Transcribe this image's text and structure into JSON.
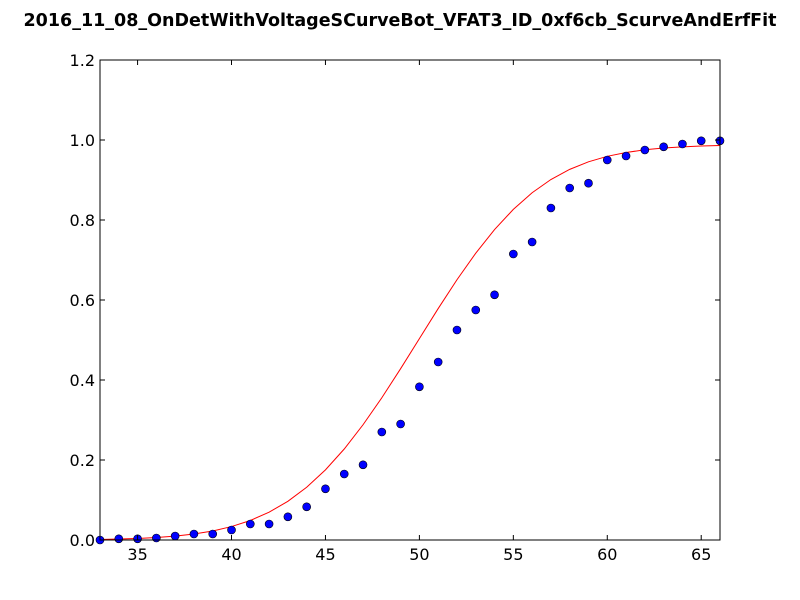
{
  "chart_data": {
    "type": "scatter",
    "title": "2016_11_08_OnDetWithVoltageSCurveBot_VFAT3_ID_0xf6cb_ScurveAndErfFit",
    "xlabel": "",
    "ylabel": "",
    "xlim": [
      33,
      66
    ],
    "ylim": [
      0.0,
      1.2
    ],
    "x_ticks": [
      35,
      40,
      45,
      50,
      55,
      60,
      65
    ],
    "y_ticks": [
      0.0,
      0.2,
      0.4,
      0.6,
      0.8,
      1.0,
      1.2
    ],
    "x_tick_labels": [
      "35",
      "40",
      "45",
      "50",
      "55",
      "60",
      "65"
    ],
    "y_tick_labels": [
      "0.0",
      "0.2",
      "0.4",
      "0.6",
      "0.8",
      "1.0",
      "1.2"
    ],
    "grid": false,
    "legend": "none",
    "series": [
      {
        "kind": "points",
        "color": "#0000ff",
        "x": [
          33,
          34,
          35,
          36,
          37,
          38,
          39,
          40,
          41,
          42,
          43,
          44,
          45,
          46,
          47,
          48,
          49,
          50,
          51,
          52,
          53,
          54,
          55,
          56,
          57,
          58,
          59,
          60,
          61,
          62,
          63,
          64,
          65,
          66
        ],
        "y": [
          0.0,
          0.003,
          0.003,
          0.005,
          0.01,
          0.015,
          0.015,
          0.025,
          0.04,
          0.04,
          0.058,
          0.083,
          0.128,
          0.165,
          0.188,
          0.27,
          0.29,
          0.383,
          0.445,
          0.525,
          0.575,
          0.613,
          0.715,
          0.745,
          0.83,
          0.88,
          0.892,
          0.95,
          0.96,
          0.975,
          0.983,
          0.99,
          0.998,
          0.998
        ]
      },
      {
        "kind": "fit-line",
        "color": "#ff0000",
        "x": [
          33,
          34,
          35,
          36,
          37,
          38,
          39,
          40,
          41,
          42,
          43,
          44,
          45,
          46,
          47,
          48,
          49,
          50,
          51,
          52,
          53,
          54,
          55,
          56,
          57,
          58,
          59,
          60,
          61,
          62,
          63,
          64,
          65,
          66
        ],
        "y": [
          0.0014,
          0.0024,
          0.0039,
          0.0062,
          0.0097,
          0.0149,
          0.0226,
          0.0336,
          0.0488,
          0.0695,
          0.0968,
          0.1318,
          0.1753,
          0.2275,
          0.2881,
          0.3556,
          0.4283,
          0.5035,
          0.5786,
          0.6506,
          0.7171,
          0.7762,
          0.8266,
          0.8681,
          0.9012,
          0.9266,
          0.9455,
          0.9592,
          0.9688,
          0.9755,
          0.98,
          0.9829,
          0.9849,
          0.9862
        ]
      }
    ]
  }
}
